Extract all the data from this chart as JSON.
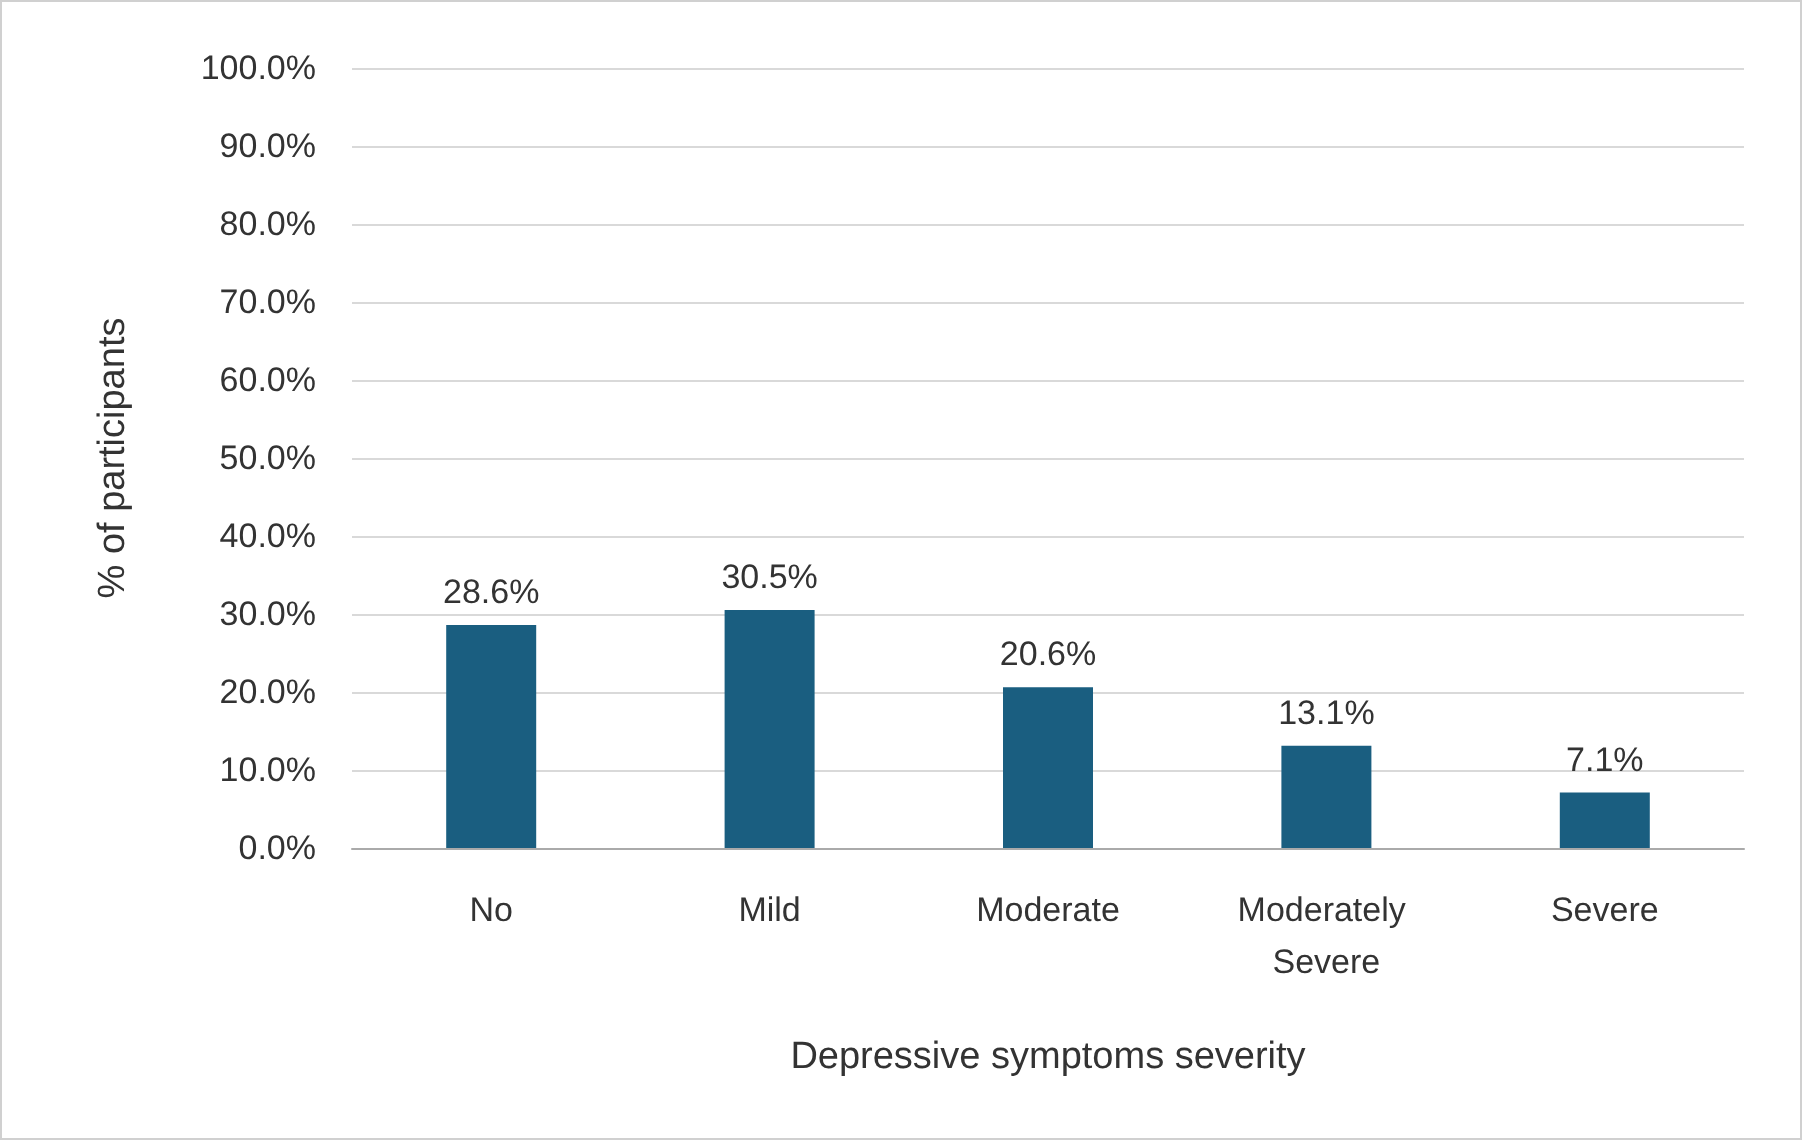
{
  "chart_data": {
    "type": "bar",
    "xlabel": "Depressive symptoms severity",
    "ylabel": "% of participants",
    "categories": [
      "No",
      "Mild",
      "Moderate",
      "Moderately Severe",
      "Severe"
    ],
    "values": [
      28.6,
      30.5,
      20.6,
      13.1,
      7.1
    ],
    "value_labels": [
      "28.6%",
      "30.5%",
      "20.6%",
      "13.1%",
      "7.1%"
    ],
    "color": "#1a5e80",
    "ylim": [
      0,
      100
    ],
    "yticks": [
      {
        "value": 0,
        "label": "0.0%"
      },
      {
        "value": 10,
        "label": "10.0%"
      },
      {
        "value": 20,
        "label": "20.0%"
      },
      {
        "value": 30,
        "label": "30.0%"
      },
      {
        "value": 40,
        "label": "40.0%"
      },
      {
        "value": 50,
        "label": "50.0%"
      },
      {
        "value": 60,
        "label": "60.0%"
      },
      {
        "value": 70,
        "label": "70.0%"
      },
      {
        "value": 80,
        "label": "80.0%"
      },
      {
        "value": 90,
        "label": "90.0%"
      },
      {
        "value": 100,
        "label": "100.0%"
      }
    ],
    "grid": true
  }
}
